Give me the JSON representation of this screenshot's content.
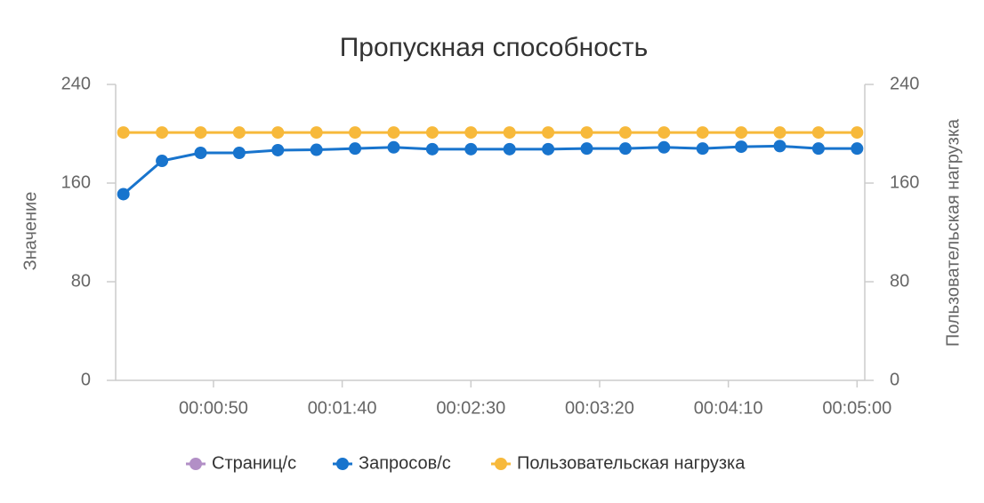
{
  "chart_data": {
    "type": "line",
    "title": "Пропускная способность",
    "ylabel": "Значение",
    "y2label": "Пользовательская нагрузка",
    "x": [
      "00:00:15",
      "00:00:30",
      "00:00:45",
      "00:01:00",
      "00:01:15",
      "00:01:30",
      "00:01:45",
      "00:02:00",
      "00:02:15",
      "00:02:30",
      "00:02:45",
      "00:03:00",
      "00:03:15",
      "00:03:30",
      "00:03:45",
      "00:04:00",
      "00:04:15",
      "00:04:30",
      "00:04:45",
      "00:05:00"
    ],
    "xlim": [
      "00:00:12",
      "00:05:03"
    ],
    "xticks": [
      "00:00:50",
      "00:01:40",
      "00:02:30",
      "00:03:20",
      "00:04:10",
      "00:05:00"
    ],
    "ylim": [
      0,
      240
    ],
    "yticks": [
      0,
      80,
      160,
      240
    ],
    "y2lim": [
      0,
      240
    ],
    "y2ticks": [
      0,
      80,
      160,
      240
    ],
    "series": [
      {
        "name": "Страниц/с",
        "color": "#b28fc6",
        "values": [
          null,
          null,
          null,
          null,
          null,
          null,
          null,
          null,
          null,
          null,
          null,
          null,
          null,
          null,
          null,
          null,
          null,
          null,
          null,
          null
        ]
      },
      {
        "name": "Запросов/с",
        "color": "#1874cd",
        "values": [
          151,
          178,
          184.5,
          184.5,
          186.7,
          187,
          188,
          189,
          187.5,
          187.5,
          187.5,
          187.5,
          188,
          188,
          189,
          188,
          189.5,
          190,
          188,
          188
        ]
      },
      {
        "name": "Пользовательская нагрузка",
        "color": "#f7b93b",
        "axis": "y2",
        "values": [
          201,
          201,
          201,
          201,
          201,
          201,
          201,
          201,
          201,
          201,
          201,
          201,
          201,
          201,
          201,
          201,
          201,
          201,
          201,
          201
        ]
      }
    ],
    "legend": "bottom"
  }
}
